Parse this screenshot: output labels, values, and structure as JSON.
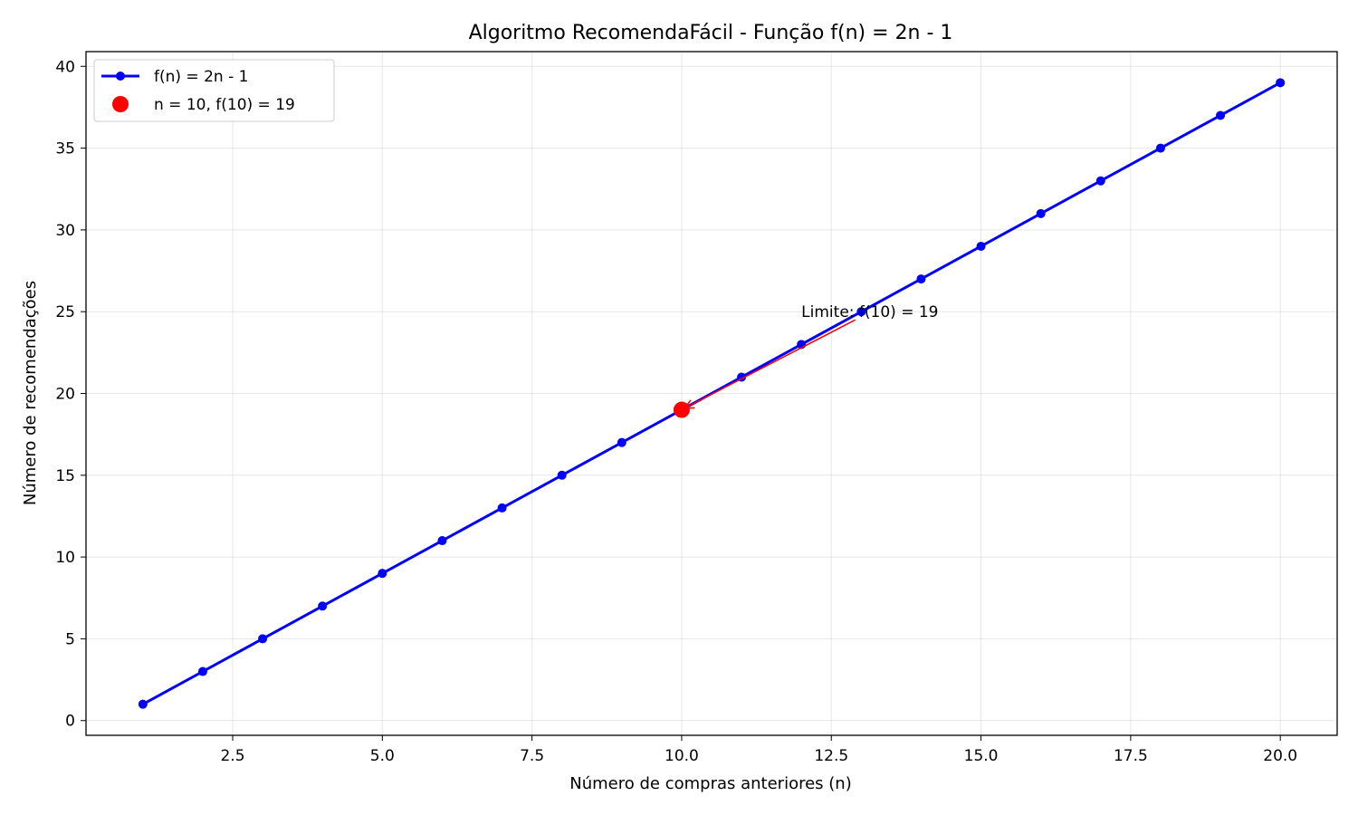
{
  "chart_data": {
    "type": "line",
    "title": "Algoritmo RecomendaFácil - Função f(n) = 2n - 1",
    "xlabel": "Número de compras anteriores (n)",
    "ylabel": "Número de recomendações",
    "xlim": [
      0.05,
      20.95
    ],
    "ylim": [
      -0.9,
      40.9
    ],
    "xticks": [
      2.5,
      5.0,
      7.5,
      10.0,
      12.5,
      15.0,
      17.5,
      20.0
    ],
    "xtick_labels": [
      "2.5",
      "5.0",
      "7.5",
      "10.0",
      "12.5",
      "15.0",
      "17.5",
      "20.0"
    ],
    "yticks": [
      0,
      5,
      10,
      15,
      20,
      25,
      30,
      35,
      40
    ],
    "ytick_labels": [
      "0",
      "5",
      "10",
      "15",
      "20",
      "25",
      "30",
      "35",
      "40"
    ],
    "grid": true,
    "legend_position": "top-left",
    "series": [
      {
        "name": "f(n) = 2n - 1",
        "color": "#0000ff",
        "marker": "circle",
        "x": [
          1,
          2,
          3,
          4,
          5,
          6,
          7,
          8,
          9,
          10,
          11,
          12,
          13,
          14,
          15,
          16,
          17,
          18,
          19,
          20
        ],
        "y": [
          1,
          3,
          5,
          7,
          9,
          11,
          13,
          15,
          17,
          19,
          21,
          23,
          25,
          27,
          29,
          31,
          33,
          35,
          37,
          39
        ]
      }
    ],
    "highlight": {
      "name": "n = 10, f(10) = 19",
      "color": "#ff0000",
      "x": 10,
      "y": 19
    },
    "annotation": {
      "text": "Limite: f(10) = 19",
      "text_x": 12,
      "text_y": 25,
      "arrow_start_x": 12.9,
      "arrow_start_y": 24.5,
      "arrow_end_x": 10.05,
      "arrow_end_y": 19.1,
      "color": "#ff0000"
    }
  }
}
